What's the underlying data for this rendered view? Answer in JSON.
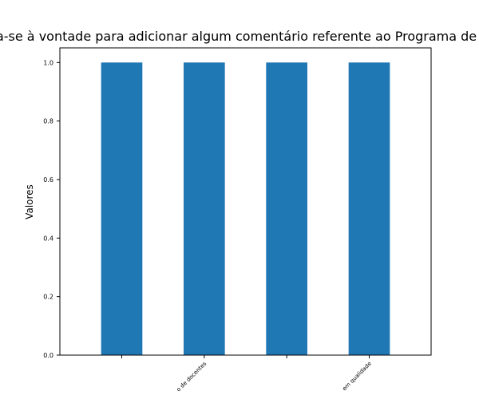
{
  "chart_data": {
    "type": "bar",
    "title": "Caso queira, sinta-se à vontade para adicionar algum comentário referente ao Programa de Pós-Graduação em",
    "xlabel": "",
    "ylabel": "Valores",
    "categories": [
      "",
      "o de docentes",
      "",
      "em qualidade"
    ],
    "values": [
      1.0,
      1.0,
      1.0,
      1.0
    ],
    "ylim": [
      0,
      1.05
    ],
    "yticks": [
      "0.0",
      "0.2",
      "0.4",
      "0.6",
      "0.8",
      "1.0"
    ],
    "bar_color": "#1f77b4",
    "grid": false
  }
}
